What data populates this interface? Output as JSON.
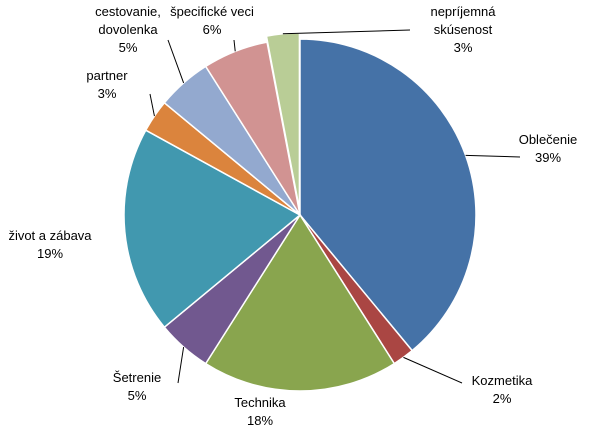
{
  "chart_data": {
    "type": "pie",
    "categories": [
      "Oblečenie",
      "Kozmetika",
      "Technika",
      "Šetrenie",
      "život a zábava",
      "partner",
      "cestovanie, dovolenka",
      "špecifické veci",
      "nepríjemná skúsenost"
    ],
    "values": [
      39,
      2,
      18,
      5,
      19,
      3,
      5,
      6,
      3
    ],
    "value_labels": [
      "39%",
      "2%",
      "18%",
      "5%",
      "19%",
      "3%",
      "5%",
      "6%",
      "3%"
    ],
    "colors": [
      "#4572a7",
      "#aa4643",
      "#89a54e",
      "#71588f",
      "#4198af",
      "#db843d",
      "#93a9cf",
      "#d19392",
      "#b9cd96"
    ]
  }
}
